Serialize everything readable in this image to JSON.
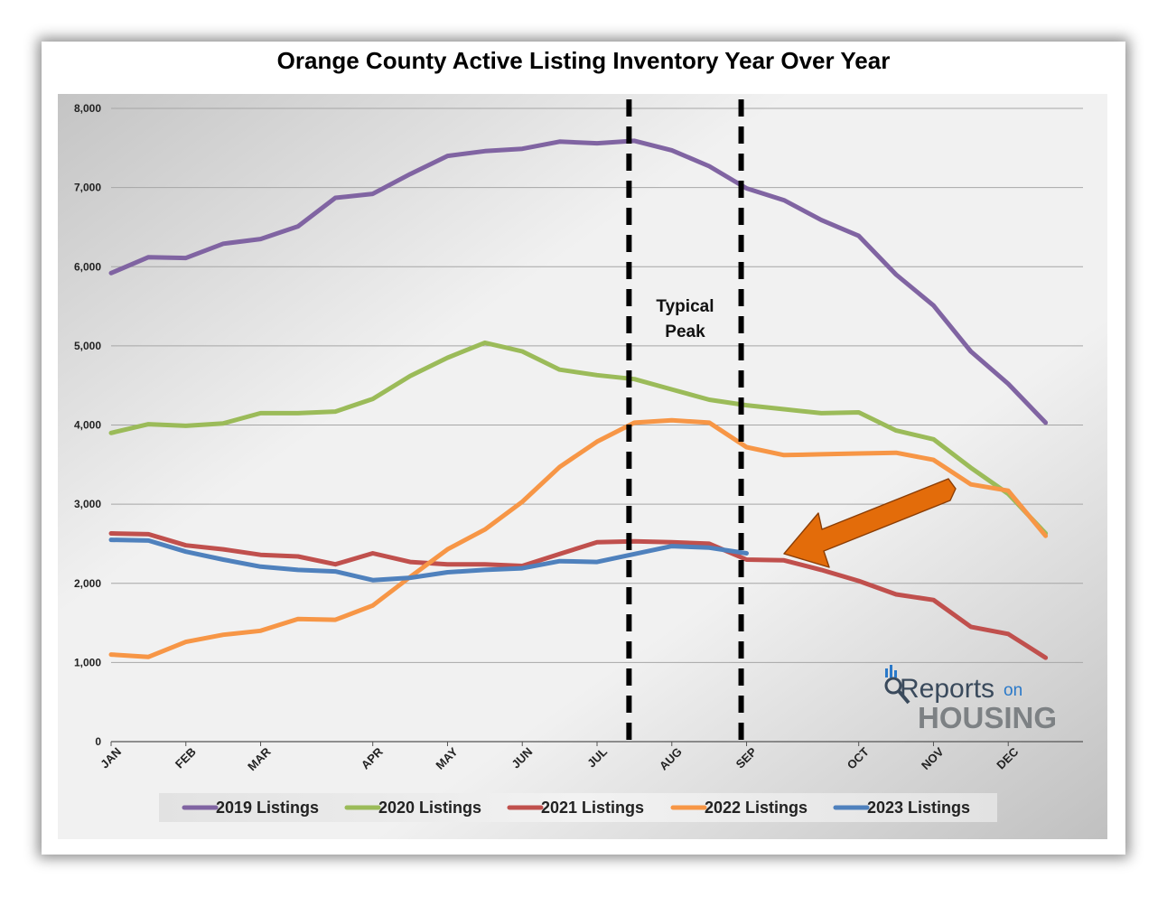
{
  "chart_data": {
    "type": "line",
    "title": "Orange County Active Listing Inventory Year Over Year",
    "xlabel": "",
    "ylabel": "",
    "ylim": [
      0,
      8000
    ],
    "yticks": [
      0,
      1000,
      2000,
      3000,
      4000,
      5000,
      6000,
      7000,
      8000
    ],
    "ytick_labels": [
      "0",
      "1,000",
      "2,000",
      "3,000",
      "4,000",
      "5,000",
      "6,000",
      "7,000",
      "8,000"
    ],
    "x_range": [
      0,
      26
    ],
    "month_ticks": [
      {
        "label": "JAN",
        "x": 0
      },
      {
        "label": "FEB",
        "x": 2
      },
      {
        "label": "MAR",
        "x": 4
      },
      {
        "label": "APR",
        "x": 7
      },
      {
        "label": "MAY",
        "x": 9
      },
      {
        "label": "JUN",
        "x": 11
      },
      {
        "label": "JUL",
        "x": 13
      },
      {
        "label": "AUG",
        "x": 15
      },
      {
        "label": "SEP",
        "x": 17
      },
      {
        "label": "OCT",
        "x": 20
      },
      {
        "label": "NOV",
        "x": 22
      },
      {
        "label": "DEC",
        "x": 24
      }
    ],
    "grid": true,
    "legend_position": "bottom",
    "series": [
      {
        "name": "2019 Listings",
        "color": "#8064a2",
        "values": [
          5920,
          6120,
          6110,
          6290,
          6350,
          6510,
          6870,
          6920,
          7170,
          7400,
          7460,
          7490,
          7580,
          7560,
          7590,
          7470,
          7270,
          6990,
          6840,
          6590,
          6390,
          5900,
          5510,
          4930,
          4520,
          4030
        ]
      },
      {
        "name": "2020 Listings",
        "color": "#9bbb59",
        "values": [
          3900,
          4010,
          3990,
          4020,
          4150,
          4150,
          4170,
          4330,
          4620,
          4850,
          5040,
          4930,
          4700,
          4630,
          4580,
          4450,
          4320,
          4250,
          4200,
          4150,
          4160,
          3930,
          3820,
          3460,
          3130,
          2630
        ]
      },
      {
        "name": "2021 Listings",
        "color": "#c0504d",
        "values": [
          2630,
          2620,
          2480,
          2430,
          2360,
          2340,
          2240,
          2380,
          2270,
          2240,
          2240,
          2220,
          2370,
          2520,
          2530,
          2520,
          2500,
          2300,
          2290,
          2170,
          2030,
          1860,
          1790,
          1450,
          1360,
          1060
        ]
      },
      {
        "name": "2022 Listings",
        "color": "#f79646",
        "values": [
          1100,
          1070,
          1260,
          1350,
          1400,
          1550,
          1540,
          1720,
          2080,
          2430,
          2680,
          3030,
          3470,
          3790,
          4030,
          4060,
          4030,
          3720,
          3620,
          3630,
          3640,
          3650,
          3560,
          3250,
          3170,
          2600
        ]
      },
      {
        "name": "2023 Listings",
        "color": "#4f81bd",
        "values": [
          2550,
          2540,
          2400,
          2300,
          2210,
          2170,
          2150,
          2040,
          2070,
          2140,
          2170,
          2190,
          2280,
          2270,
          2370,
          2470,
          2450,
          2380
        ]
      }
    ],
    "annotations": {
      "typical_peak": [
        "Typical",
        "Peak"
      ],
      "peak_band_x": [
        14,
        17
      ],
      "arrow": {
        "color": "#e36c0a",
        "points_to": "2023 Listings latest value"
      }
    }
  },
  "logo": {
    "line1": "Reports",
    "on": "on",
    "line2": "HOUSING"
  }
}
